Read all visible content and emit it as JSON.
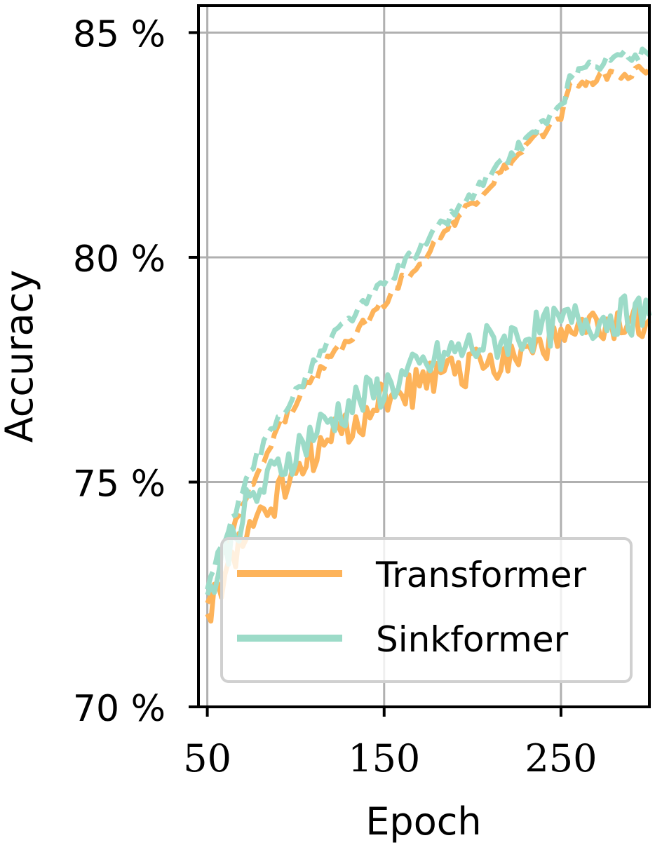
{
  "colors": {
    "transformer": "#fdb35a",
    "sinkformer": "#9cdbc8",
    "grid": "#b0b0b0",
    "axis": "#000000"
  },
  "chart_data": {
    "type": "line",
    "xlabel": "Epoch",
    "ylabel": "Accuracy",
    "xlim": [
      45,
      300
    ],
    "ylim": [
      70,
      85.6
    ],
    "xticks": [
      50,
      150,
      250
    ],
    "xtick_labels": [
      "50",
      "150",
      "250"
    ],
    "yticks": [
      70,
      75,
      80,
      85
    ],
    "ytick_labels": [
      "70 %",
      "75 %",
      "80 %",
      "85 %"
    ],
    "grid": true,
    "legend_position": "lower-right",
    "legend": [
      "Transformer",
      "Sinkformer"
    ],
    "series": [
      {
        "name": "Transformer",
        "variant": "train",
        "style": "dashed",
        "x": [
          50,
          60,
          70,
          80,
          90,
          100,
          110,
          120,
          130,
          140,
          150,
          160,
          170,
          180,
          190,
          200,
          210,
          220,
          230,
          240,
          250,
          255,
          260,
          270,
          280,
          290,
          300
        ],
        "y": [
          72.3,
          73.4,
          74.5,
          75.4,
          76.2,
          76.8,
          77.3,
          77.8,
          78.2,
          78.6,
          79.0,
          79.5,
          79.9,
          80.4,
          80.8,
          81.2,
          81.6,
          82.0,
          82.4,
          82.8,
          83.2,
          83.8,
          83.9,
          84.0,
          84.1,
          84.1,
          84.2
        ]
      },
      {
        "name": "Sinkformer",
        "variant": "train",
        "style": "dashed",
        "x": [
          50,
          60,
          70,
          80,
          90,
          100,
          110,
          120,
          130,
          140,
          150,
          160,
          170,
          180,
          190,
          200,
          210,
          220,
          230,
          240,
          250,
          255,
          260,
          270,
          280,
          290,
          300
        ],
        "y": [
          72.6,
          73.8,
          74.8,
          75.7,
          76.4,
          77.0,
          77.6,
          78.2,
          78.6,
          79.0,
          79.4,
          79.8,
          80.2,
          80.6,
          81.0,
          81.4,
          81.8,
          82.2,
          82.6,
          83.0,
          83.3,
          84.0,
          84.2,
          84.3,
          84.4,
          84.5,
          84.5
        ]
      },
      {
        "name": "Transformer",
        "variant": "test",
        "style": "solid",
        "x": [
          50,
          60,
          70,
          80,
          90,
          100,
          110,
          120,
          130,
          140,
          150,
          160,
          170,
          180,
          190,
          200,
          210,
          220,
          230,
          240,
          250,
          260,
          270,
          280,
          290,
          300
        ],
        "y": [
          72.0,
          73.0,
          73.7,
          74.2,
          74.8,
          75.2,
          75.6,
          75.9,
          76.2,
          76.5,
          76.8,
          77.0,
          77.1,
          77.3,
          77.5,
          77.6,
          77.7,
          77.8,
          78.0,
          78.1,
          78.2,
          78.3,
          78.4,
          78.4,
          78.5,
          78.6
        ]
      },
      {
        "name": "Sinkformer",
        "variant": "test",
        "style": "solid",
        "x": [
          50,
          60,
          70,
          80,
          90,
          100,
          110,
          120,
          130,
          140,
          150,
          160,
          170,
          180,
          190,
          200,
          210,
          220,
          230,
          240,
          250,
          260,
          270,
          280,
          290,
          300
        ],
        "y": [
          72.4,
          73.4,
          74.3,
          74.8,
          75.3,
          75.7,
          76.1,
          76.4,
          76.7,
          76.9,
          77.1,
          77.3,
          77.5,
          77.7,
          77.9,
          78.0,
          78.1,
          78.2,
          78.3,
          78.4,
          78.5,
          78.6,
          78.6,
          78.7,
          78.7,
          78.7
        ]
      }
    ]
  }
}
